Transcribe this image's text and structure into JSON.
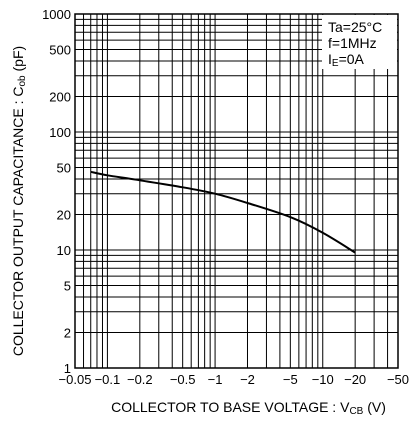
{
  "chart_data": {
    "type": "line",
    "title": "",
    "xlabel": "COLLECTOR TO BASE VOLTAGE : V",
    "xlabel_sub": "CB",
    "xlabel_unit": " (V)",
    "ylabel": "COLLECTOR OUTPUT CAPACITANCE : C",
    "ylabel_sub": "ob",
    "ylabel_unit": " (pF)",
    "x_scale": "log",
    "y_scale": "log",
    "xlim": [
      -0.05,
      -50
    ],
    "ylim": [
      1,
      1000
    ],
    "grid": true,
    "x_ticks": [
      {
        "value": 0.05,
        "label": "−0.05"
      },
      {
        "value": 0.1,
        "label": "−0.1"
      },
      {
        "value": 0.2,
        "label": "−0.2"
      },
      {
        "value": 0.5,
        "label": "−0.5"
      },
      {
        "value": 1,
        "label": "−1"
      },
      {
        "value": 2,
        "label": "−2"
      },
      {
        "value": 5,
        "label": "−5"
      },
      {
        "value": 10,
        "label": "−10"
      },
      {
        "value": 20,
        "label": "−20"
      },
      {
        "value": 50,
        "label": "−50"
      }
    ],
    "y_ticks": [
      {
        "value": 1,
        "label": "1"
      },
      {
        "value": 2,
        "label": "2"
      },
      {
        "value": 5,
        "label": "5"
      },
      {
        "value": 10,
        "label": "10"
      },
      {
        "value": 20,
        "label": "20"
      },
      {
        "value": 50,
        "label": "50"
      },
      {
        "value": 100,
        "label": "100"
      },
      {
        "value": 200,
        "label": "200"
      },
      {
        "value": 500,
        "label": "500"
      },
      {
        "value": 1000,
        "label": "1000"
      }
    ],
    "conditions": [
      {
        "main": "Ta=25°C",
        "sub": ""
      },
      {
        "main": "f=1MHz",
        "sub": ""
      },
      {
        "main": "I",
        "sub": "E",
        "rest": "=0A"
      }
    ],
    "series": [
      {
        "x": [
          -0.07,
          -0.1,
          -0.2,
          -0.5,
          -1,
          -2,
          -5,
          -10,
          -20
        ],
        "y": [
          46,
          43,
          39,
          34,
          30,
          25,
          19,
          14,
          9.5
        ]
      }
    ]
  }
}
